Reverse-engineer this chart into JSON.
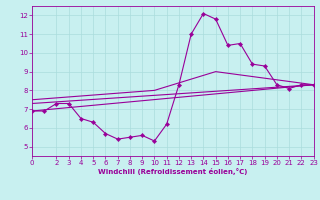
{
  "xlabel": "Windchill (Refroidissement éolien,°C)",
  "ylabel": "",
  "bg_color": "#c8f0f0",
  "line_color": "#990099",
  "grid_color": "#aadddd",
  "xlim": [
    0,
    23
  ],
  "ylim": [
    4.5,
    12.5
  ],
  "xticks": [
    0,
    2,
    3,
    4,
    5,
    6,
    7,
    8,
    9,
    10,
    11,
    12,
    13,
    14,
    15,
    16,
    17,
    18,
    19,
    20,
    21,
    22,
    23
  ],
  "yticks": [
    5,
    6,
    7,
    8,
    9,
    10,
    11,
    12
  ],
  "series1_x": [
    0,
    1,
    2,
    3,
    4,
    5,
    6,
    7,
    8,
    9,
    10,
    11,
    12,
    13,
    14,
    15,
    16,
    17,
    18,
    19,
    20,
    21,
    22,
    23
  ],
  "series1_y": [
    6.9,
    6.9,
    7.3,
    7.3,
    6.5,
    6.3,
    5.7,
    5.4,
    5.5,
    5.6,
    5.3,
    6.2,
    8.3,
    11.0,
    12.1,
    11.8,
    10.4,
    10.5,
    9.4,
    9.3,
    8.3,
    8.1,
    8.3,
    8.3
  ],
  "trend1_x": [
    0,
    23
  ],
  "trend1_y": [
    6.9,
    8.3
  ],
  "trend2_x": [
    0,
    23
  ],
  "trend2_y": [
    7.3,
    8.3
  ],
  "trend3_x": [
    0,
    10,
    15,
    23
  ],
  "trend3_y": [
    7.5,
    8.0,
    9.0,
    8.3
  ]
}
